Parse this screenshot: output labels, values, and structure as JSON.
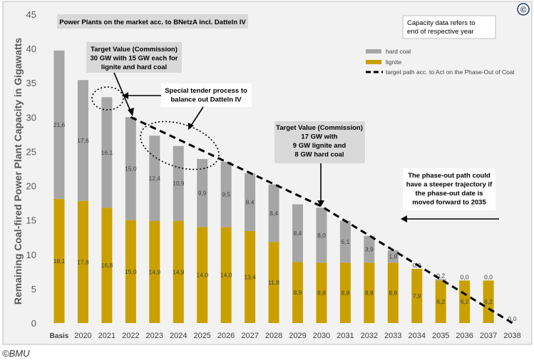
{
  "credit": "©BMU",
  "copyright_symbol": "©",
  "chart_data": {
    "type": "bar",
    "stacked": true,
    "ylabel": "Remaining Coal-fired Power Plant Capacity in Gigawatts",
    "ylim": [
      0,
      45
    ],
    "yticks": [
      0,
      5,
      10,
      15,
      20,
      25,
      30,
      35,
      40,
      45
    ],
    "grid": false,
    "legend_position": "top-right",
    "categories": [
      "Basis",
      "2020",
      "2021",
      "2022",
      "2023",
      "2024",
      "2025",
      "2026",
      "2027",
      "2028",
      "2029",
      "2030",
      "2031",
      "2032",
      "2033",
      "2034",
      "2035",
      "2036",
      "2037",
      "2038"
    ],
    "series": [
      {
        "name": "lignite",
        "color": "#C9A000",
        "values": [
          18.1,
          17.8,
          16.8,
          15.0,
          14.9,
          14.9,
          14.0,
          14.0,
          13.4,
          11.8,
          8.9,
          8.8,
          8.8,
          8.8,
          8.8,
          7.9,
          6.2,
          6.2,
          6.2,
          0.0
        ],
        "labels": [
          "18,1",
          "17,8",
          "16,8",
          "15,0",
          "14,9",
          "14,9",
          "14,0",
          "14,0",
          "13,4",
          "11,8",
          "8,9",
          "8,8",
          "8,8",
          "8,8",
          "8,8",
          "7,9",
          "6,2",
          "6,2",
          "6,2",
          "0,0"
        ]
      },
      {
        "name": "hard coal",
        "color": "#A6A6A6",
        "values": [
          21.6,
          17.6,
          16.1,
          15.0,
          12.4,
          10.9,
          9.9,
          9.5,
          8.4,
          8.4,
          8.4,
          8.0,
          6.1,
          3.9,
          1.8,
          0.0,
          0.2,
          0.0,
          0.0,
          0.0
        ],
        "labels": [
          "21,6",
          "17,6",
          "16,1",
          "15,0",
          "12,4",
          "10,9",
          "9,9",
          "9,5",
          "8,4",
          "8,4",
          "8,4",
          "8,0",
          "6,1",
          "3,9",
          "1,8",
          "0,0",
          "0,2",
          "0,0",
          "0,0",
          ""
        ]
      }
    ],
    "target_path": {
      "name": "target path acc. to Act on the Phase-Out of Coal",
      "x": [
        "2022",
        "2030",
        "2038"
      ],
      "y": [
        30,
        17,
        0
      ]
    },
    "legend": [
      {
        "label": "hard coal",
        "kind": "box",
        "color": "#A6A6A6"
      },
      {
        "label": "lignite",
        "kind": "box",
        "color": "#C9A000"
      },
      {
        "label": "target path acc. to Act on the Phase-Out of Coal",
        "kind": "dash",
        "color": "#000000"
      }
    ],
    "annotations": {
      "plants_on_market": "Power Plants on the market acc. to BNetzA incl. Datteln IV",
      "capacity_note": "Capacity data refers to end of respective year",
      "target_2022": [
        "Target Value (Commission)",
        "30 GW with 15 GW each for",
        "lignite and hard coal"
      ],
      "special_tender": [
        "Special tender process to",
        "balance out Datteln IV"
      ],
      "target_2030": [
        "Target Value (Commission)",
        "17 GW with",
        "9 GW lignite and",
        "8 GW hard coal"
      ],
      "phase_out_note": [
        "The phase-out path could",
        "have a steeper trajectory if",
        "the phase-out date is",
        "moved forward to 2035"
      ]
    }
  }
}
